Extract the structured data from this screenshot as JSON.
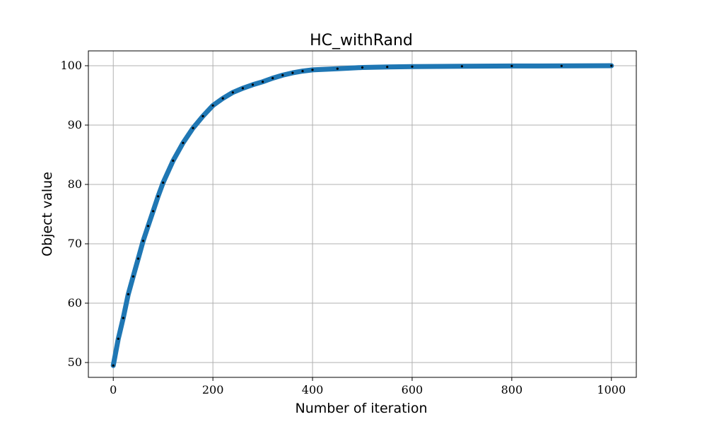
{
  "chart_data": {
    "type": "line",
    "title": "HC_withRand",
    "xlabel": "Number of iteration",
    "ylabel": "Object value",
    "xlim": [
      -50,
      1050
    ],
    "ylim": [
      47.5,
      102.5
    ],
    "xticks": [
      0,
      200,
      400,
      600,
      800,
      1000
    ],
    "yticks": [
      50,
      60,
      70,
      80,
      90,
      100
    ],
    "grid": true,
    "legend": "none",
    "colors": {
      "line": "#1f77b4",
      "markers": "#000000"
    },
    "series": [
      {
        "x": [
          0,
          10,
          20,
          30,
          40,
          50,
          60,
          70,
          80,
          90,
          100,
          120,
          140,
          160,
          180,
          200,
          220,
          240,
          260,
          280,
          300,
          320,
          340,
          360,
          380,
          400,
          450,
          500,
          550,
          600,
          700,
          800,
          900,
          1000
        ],
        "values": [
          49.5,
          54.0,
          57.5,
          61.5,
          64.5,
          67.5,
          70.5,
          73.0,
          75.5,
          78.0,
          80.3,
          84.0,
          87.0,
          89.5,
          91.5,
          93.3,
          94.5,
          95.5,
          96.2,
          96.8,
          97.3,
          97.9,
          98.4,
          98.8,
          99.1,
          99.3,
          99.5,
          99.7,
          99.8,
          99.85,
          99.9,
          99.95,
          99.97,
          100.0
        ]
      }
    ]
  }
}
